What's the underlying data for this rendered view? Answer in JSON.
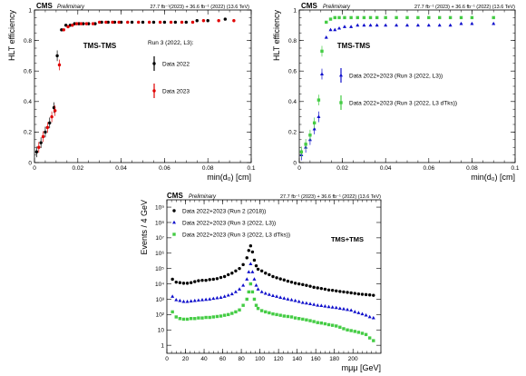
{
  "panels": {
    "top_left": {
      "header_cms": "CMS",
      "header_prelim": "Preliminary",
      "header_lumi": "27.7 fb⁻¹(2023) + 36.6 fb⁻¹ (2022) (13.6 TeV)",
      "category": "TMS-TMS",
      "legend_title": "Run 3 (2022, L3):"
    },
    "top_right": {
      "header_cms": "CMS",
      "header_prelim": "Preliminary",
      "header_lumi": "27.7 fb⁻¹ (2023) + 36.6 fb⁻¹ (2022) (13.6 TeV)",
      "category": "TMS-TMS"
    },
    "bottom": {
      "header_cms": "CMS",
      "header_prelim": "Preliminary",
      "header_lumi": "27.7 fb⁻¹ (2023) + 36.6 fb⁻¹ (2022) (13.6 TeV)",
      "category": "TMS+TMS"
    }
  },
  "colors": {
    "black": "#000000",
    "red": "#e00000",
    "blue": "#1010cc",
    "green": "#44cc44"
  },
  "chart_data": [
    {
      "id": "top_left",
      "type": "scatter",
      "xlabel": "min(d₀) [cm]",
      "ylabel": "HLT efficiency",
      "xlim": [
        0,
        0.1
      ],
      "ylim": [
        0,
        1
      ],
      "xticks": [
        0,
        0.02,
        0.04,
        0.06,
        0.08,
        0.1
      ],
      "xtick_labels": [
        "0",
        "0.02",
        "0.04",
        "0.06",
        "0.08",
        "0.1"
      ],
      "yticks": [
        0,
        0.2,
        0.4,
        0.6,
        0.8,
        1
      ],
      "ytick_labels": [
        "0",
        "0.2",
        "0.4",
        "0.6",
        "0.8",
        "1"
      ],
      "series": [
        {
          "name": "Data 2022",
          "color": "black",
          "x": [
            0.001,
            0.003,
            0.005,
            0.007,
            0.009,
            0.0105,
            0.0125,
            0.0145,
            0.0165,
            0.0185,
            0.0205,
            0.0225,
            0.025,
            0.028,
            0.031,
            0.034,
            0.037,
            0.04,
            0.045,
            0.05,
            0.055,
            0.06,
            0.065,
            0.07,
            0.075,
            0.08,
            0.088
          ],
          "y": [
            0.07,
            0.13,
            0.2,
            0.26,
            0.36,
            0.7,
            0.87,
            0.9,
            0.9,
            0.91,
            0.91,
            0.91,
            0.91,
            0.91,
            0.92,
            0.92,
            0.92,
            0.92,
            0.92,
            0.92,
            0.92,
            0.92,
            0.92,
            0.92,
            0.93,
            0.93,
            0.94
          ]
        },
        {
          "name": "Data 2023",
          "color": "red",
          "x": [
            0.002,
            0.004,
            0.006,
            0.008,
            0.0095,
            0.0115,
            0.0135,
            0.0155,
            0.0175,
            0.0195,
            0.0215,
            0.024,
            0.027,
            0.03,
            0.033,
            0.036,
            0.039,
            0.043,
            0.048,
            0.053,
            0.058,
            0.063,
            0.068,
            0.073,
            0.078,
            0.085,
            0.092
          ],
          "y": [
            0.1,
            0.17,
            0.23,
            0.3,
            0.34,
            0.64,
            0.87,
            0.89,
            0.9,
            0.91,
            0.91,
            0.91,
            0.91,
            0.92,
            0.92,
            0.92,
            0.92,
            0.92,
            0.92,
            0.92,
            0.92,
            0.92,
            0.92,
            0.92,
            0.93,
            0.93,
            0.93
          ]
        }
      ]
    },
    {
      "id": "top_right",
      "type": "scatter",
      "xlabel": "min(d₀) [cm]",
      "ylabel": "HLT efficiency",
      "xlim": [
        0,
        0.1
      ],
      "ylim": [
        0,
        1
      ],
      "xticks": [
        0,
        0.02,
        0.04,
        0.06,
        0.08,
        0.1
      ],
      "xtick_labels": [
        "0",
        "0.02",
        "0.04",
        "0.06",
        "0.08",
        "0.1"
      ],
      "yticks": [
        0,
        0.2,
        0.4,
        0.6,
        0.8,
        1
      ],
      "ytick_labels": [
        "0",
        "0.2",
        "0.4",
        "0.6",
        "0.8",
        "1"
      ],
      "series": [
        {
          "name": "Data 2022+2023 (Run 3 (2022, L3))",
          "color": "blue",
          "x": [
            0.001,
            0.003,
            0.005,
            0.007,
            0.009,
            0.0105,
            0.0125,
            0.0145,
            0.0165,
            0.0185,
            0.021,
            0.024,
            0.027,
            0.03,
            0.033,
            0.036,
            0.04,
            0.045,
            0.05,
            0.055,
            0.06,
            0.065,
            0.07,
            0.075,
            0.08,
            0.09
          ],
          "y": [
            0.05,
            0.1,
            0.15,
            0.22,
            0.3,
            0.58,
            0.82,
            0.87,
            0.87,
            0.88,
            0.89,
            0.89,
            0.9,
            0.9,
            0.9,
            0.9,
            0.9,
            0.9,
            0.9,
            0.9,
            0.9,
            0.9,
            0.9,
            0.91,
            0.91,
            0.91
          ]
        },
        {
          "name": "Data 2022+2023 (Run 3 (2022, L3 dTks))",
          "color": "green",
          "x": [
            0.001,
            0.003,
            0.005,
            0.007,
            0.009,
            0.0105,
            0.0125,
            0.0145,
            0.0165,
            0.0185,
            0.021,
            0.024,
            0.027,
            0.03,
            0.033,
            0.036,
            0.04,
            0.045,
            0.05,
            0.055,
            0.06,
            0.065,
            0.07,
            0.075,
            0.08,
            0.09
          ],
          "y": [
            0.07,
            0.12,
            0.18,
            0.26,
            0.41,
            0.73,
            0.92,
            0.94,
            0.95,
            0.95,
            0.95,
            0.95,
            0.95,
            0.95,
            0.95,
            0.95,
            0.95,
            0.95,
            0.95,
            0.95,
            0.95,
            0.95,
            0.95,
            0.95,
            0.95,
            0.95
          ]
        }
      ]
    },
    {
      "id": "bottom",
      "type": "scatter",
      "log_y": true,
      "xlabel": "mμμ [GeV]",
      "ylabel": "Events / 4 GeV",
      "xlim": [
        0,
        230
      ],
      "ylim": [
        0.3,
        3000000000
      ],
      "xticks": [
        0,
        20,
        40,
        60,
        80,
        100,
        120,
        140,
        160,
        180,
        200
      ],
      "xtick_labels": [
        "0",
        "20",
        "40",
        "60",
        "80",
        "100",
        "120",
        "140",
        "160",
        "180",
        "200"
      ],
      "yticks": [
        1,
        10,
        100,
        1000,
        10000,
        100000,
        1000000,
        10000000,
        100000000,
        1000000000
      ],
      "ytick_labels": [
        "1",
        "10",
        "10²",
        "10³",
        "10⁴",
        "10⁵",
        "10⁶",
        "10⁷",
        "10⁸",
        "10⁹"
      ],
      "series": [
        {
          "name": "Data 2022+2023 (Run 2 (2018))",
          "color": "black",
          "x": [
            6,
            10,
            14,
            18,
            22,
            26,
            30,
            34,
            38,
            42,
            46,
            50,
            54,
            58,
            62,
            66,
            70,
            74,
            78,
            82,
            86,
            88,
            90,
            92,
            94,
            96,
            98,
            102,
            106,
            110,
            114,
            118,
            122,
            126,
            130,
            134,
            138,
            142,
            146,
            150,
            154,
            158,
            162,
            166,
            170,
            174,
            178,
            182,
            186,
            190,
            194,
            198,
            202,
            206,
            210,
            214,
            218,
            222
          ],
          "y": [
            20000,
            13000,
            12000,
            11000,
            11000,
            12000,
            14000,
            16000,
            17000,
            17000,
            19000,
            20000,
            22000,
            26000,
            30000,
            40000,
            50000,
            70000,
            100000,
            180000,
            500000,
            1500000,
            3000000,
            1200000,
            350000,
            150000,
            90000,
            70000,
            50000,
            40000,
            30000,
            25000,
            21000,
            18000,
            15000,
            13000,
            11000,
            10000,
            9000,
            8000,
            7000,
            6000,
            5500,
            5000,
            4500,
            4000,
            3800,
            3500,
            3200,
            3000,
            2800,
            2600,
            2400,
            2200,
            2100,
            2000,
            1900,
            1800
          ]
        },
        {
          "name": "Data 2022+2023 (Run 3 (2022, L3))",
          "color": "blue",
          "x": [
            6,
            10,
            14,
            18,
            22,
            26,
            30,
            34,
            38,
            42,
            46,
            50,
            54,
            58,
            62,
            66,
            70,
            74,
            78,
            82,
            86,
            88,
            90,
            92,
            94,
            96,
            98,
            102,
            106,
            110,
            114,
            118,
            122,
            126,
            130,
            134,
            138,
            142,
            146,
            150,
            154,
            158,
            162,
            166,
            170,
            174,
            178,
            182,
            186,
            190,
            194,
            198,
            202,
            206,
            210,
            214,
            218,
            222
          ],
          "y": [
            1500,
            900,
            800,
            700,
            700,
            750,
            800,
            850,
            900,
            950,
            1000,
            1100,
            1200,
            1300,
            1500,
            1800,
            2200,
            3000,
            4500,
            8000,
            20000,
            60000,
            200000,
            60000,
            20000,
            8000,
            4500,
            3000,
            2400,
            2000,
            1700,
            1500,
            1300,
            1150,
            1000,
            900,
            800,
            700,
            600,
            550,
            500,
            450,
            400,
            380,
            350,
            320,
            300,
            280,
            250,
            230,
            210,
            190,
            150,
            130,
            110,
            90,
            70,
            60
          ]
        },
        {
          "name": "Data 2022+2023 (Run 3 (2022, L3 dTks))",
          "color": "green",
          "x": [
            6,
            10,
            14,
            18,
            22,
            26,
            30,
            34,
            38,
            42,
            46,
            50,
            54,
            58,
            62,
            66,
            70,
            74,
            78,
            82,
            86,
            88,
            90,
            92,
            94,
            96,
            98,
            102,
            106,
            110,
            114,
            118,
            122,
            126,
            130,
            134,
            138,
            142,
            146,
            150,
            154,
            158,
            162,
            166,
            170,
            174,
            178,
            182,
            186,
            190,
            194,
            198,
            202,
            206,
            210,
            214,
            218,
            222
          ],
          "y": [
            150,
            70,
            55,
            50,
            50,
            55,
            55,
            60,
            60,
            65,
            65,
            70,
            75,
            80,
            90,
            100,
            120,
            150,
            200,
            400,
            1000,
            3000,
            10000,
            3000,
            1000,
            400,
            250,
            180,
            150,
            130,
            110,
            100,
            90,
            80,
            75,
            70,
            60,
            55,
            50,
            45,
            40,
            35,
            30,
            28,
            25,
            22,
            20,
            18,
            15,
            12,
            10,
            9,
            8,
            7,
            6,
            5,
            3,
            2
          ]
        }
      ]
    }
  ]
}
